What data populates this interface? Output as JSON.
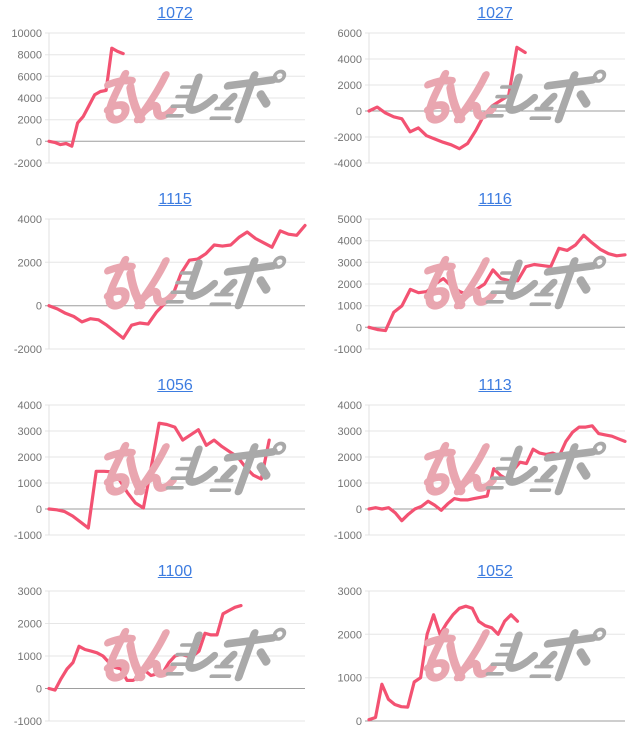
{
  "page": {
    "background": "#ffffff"
  },
  "style": {
    "line_color": "#f35272",
    "title_color": "#3d7ce0",
    "label_color": "#757575",
    "grid_color": "#e6e6e6",
    "zero_line_color": "#9e9e9e",
    "axis_line_color": "#e0e0e0"
  },
  "watermark": {
    "text": "みんレポ",
    "pink": "#e9a6b0",
    "gray": "#a9a9a9"
  },
  "chart_data": [
    {
      "type": "line",
      "title": "1072",
      "grid": true,
      "legend": "none",
      "ylim": [
        -2000,
        10000
      ],
      "ytick_step": 2000,
      "x_extent": 0.29,
      "values": [
        0,
        -100,
        -300,
        -200,
        -450,
        1700,
        2300,
        3300,
        4300,
        4600,
        4700,
        8600,
        8300,
        8100
      ]
    },
    {
      "type": "line",
      "title": "1027",
      "grid": true,
      "legend": "none",
      "ylim": [
        -4000,
        6000
      ],
      "ytick_step": 2000,
      "x_extent": 0.61,
      "values": [
        0,
        300,
        -150,
        -450,
        -600,
        -1600,
        -1300,
        -1900,
        -2150,
        -2400,
        -2600,
        -2900,
        -2500,
        -1500,
        -300,
        400,
        800,
        1200,
        4900,
        4500
      ]
    },
    {
      "type": "line",
      "title": "1115",
      "grid": true,
      "legend": "none",
      "ylim": [
        -2000,
        4000
      ],
      "ytick_step": 2000,
      "x_extent": 1.0,
      "values": [
        0,
        -150,
        -350,
        -500,
        -750,
        -600,
        -650,
        -900,
        -1200,
        -1500,
        -900,
        -800,
        -850,
        -300,
        100,
        500,
        1500,
        2100,
        2150,
        2400,
        2800,
        2750,
        2800,
        3150,
        3400,
        3100,
        2900,
        2700,
        3450,
        3300,
        3250,
        3700
      ]
    },
    {
      "type": "line",
      "title": "1116",
      "grid": true,
      "legend": "none",
      "ylim": [
        -1000,
        5000
      ],
      "ytick_step": 1000,
      "x_extent": 1.0,
      "values": [
        0,
        -100,
        -150,
        700,
        1000,
        1750,
        1600,
        1650,
        2000,
        2250,
        1900,
        1650,
        1500,
        1750,
        2000,
        2650,
        2250,
        2150,
        2150,
        2800,
        2900,
        2850,
        2800,
        3650,
        3550,
        3800,
        4250,
        3900,
        3600,
        3400,
        3300,
        3350
      ]
    },
    {
      "type": "line",
      "title": "1056",
      "grid": true,
      "legend": "none",
      "ylim": [
        -1000,
        4000
      ],
      "ytick_step": 1000,
      "x_extent": 0.86,
      "values": [
        0,
        -30,
        -100,
        -270,
        -500,
        -730,
        1450,
        1450,
        1430,
        1100,
        620,
        230,
        40,
        1600,
        3300,
        3250,
        3150,
        2650,
        2850,
        3050,
        2450,
        2650,
        2400,
        2200,
        2000,
        1600,
        1300,
        1150,
        2650
      ]
    },
    {
      "type": "line",
      "title": "1113",
      "grid": true,
      "legend": "none",
      "ylim": [
        -1000,
        4000
      ],
      "ytick_step": 1000,
      "x_extent": 1.0,
      "values": [
        0,
        50,
        0,
        50,
        -150,
        -450,
        -200,
        0,
        100,
        300,
        150,
        -50,
        200,
        400,
        350,
        350,
        400,
        450,
        500,
        1550,
        1300,
        1150,
        1500,
        1800,
        1750,
        2300,
        2150,
        2100,
        2150,
        2050,
        2600,
        2950,
        3150,
        3150,
        3200,
        2900,
        2850,
        2800,
        2700,
        2600
      ]
    },
    {
      "type": "line",
      "title": "1100",
      "grid": true,
      "legend": "none",
      "ylim": [
        -1000,
        3000
      ],
      "ytick_step": 1000,
      "x_extent": 0.75,
      "values": [
        0,
        -50,
        300,
        600,
        800,
        1300,
        1200,
        1150,
        1100,
        1000,
        800,
        650,
        600,
        250,
        250,
        350,
        550,
        400,
        450,
        500,
        800,
        1000,
        1050,
        1000,
        1000,
        1150,
        1700,
        1650,
        1650,
        2300,
        2400,
        2500,
        2550
      ]
    },
    {
      "type": "line",
      "title": "1052",
      "grid": true,
      "legend": "none",
      "ylim": [
        0,
        3000
      ],
      "ytick_step": 1000,
      "x_extent": 0.58,
      "values": [
        30,
        80,
        850,
        500,
        380,
        330,
        320,
        900,
        1000,
        2000,
        2450,
        2000,
        2250,
        2450,
        2600,
        2650,
        2600,
        2300,
        2200,
        2150,
        2000,
        2300,
        2450,
        2300
      ]
    }
  ]
}
